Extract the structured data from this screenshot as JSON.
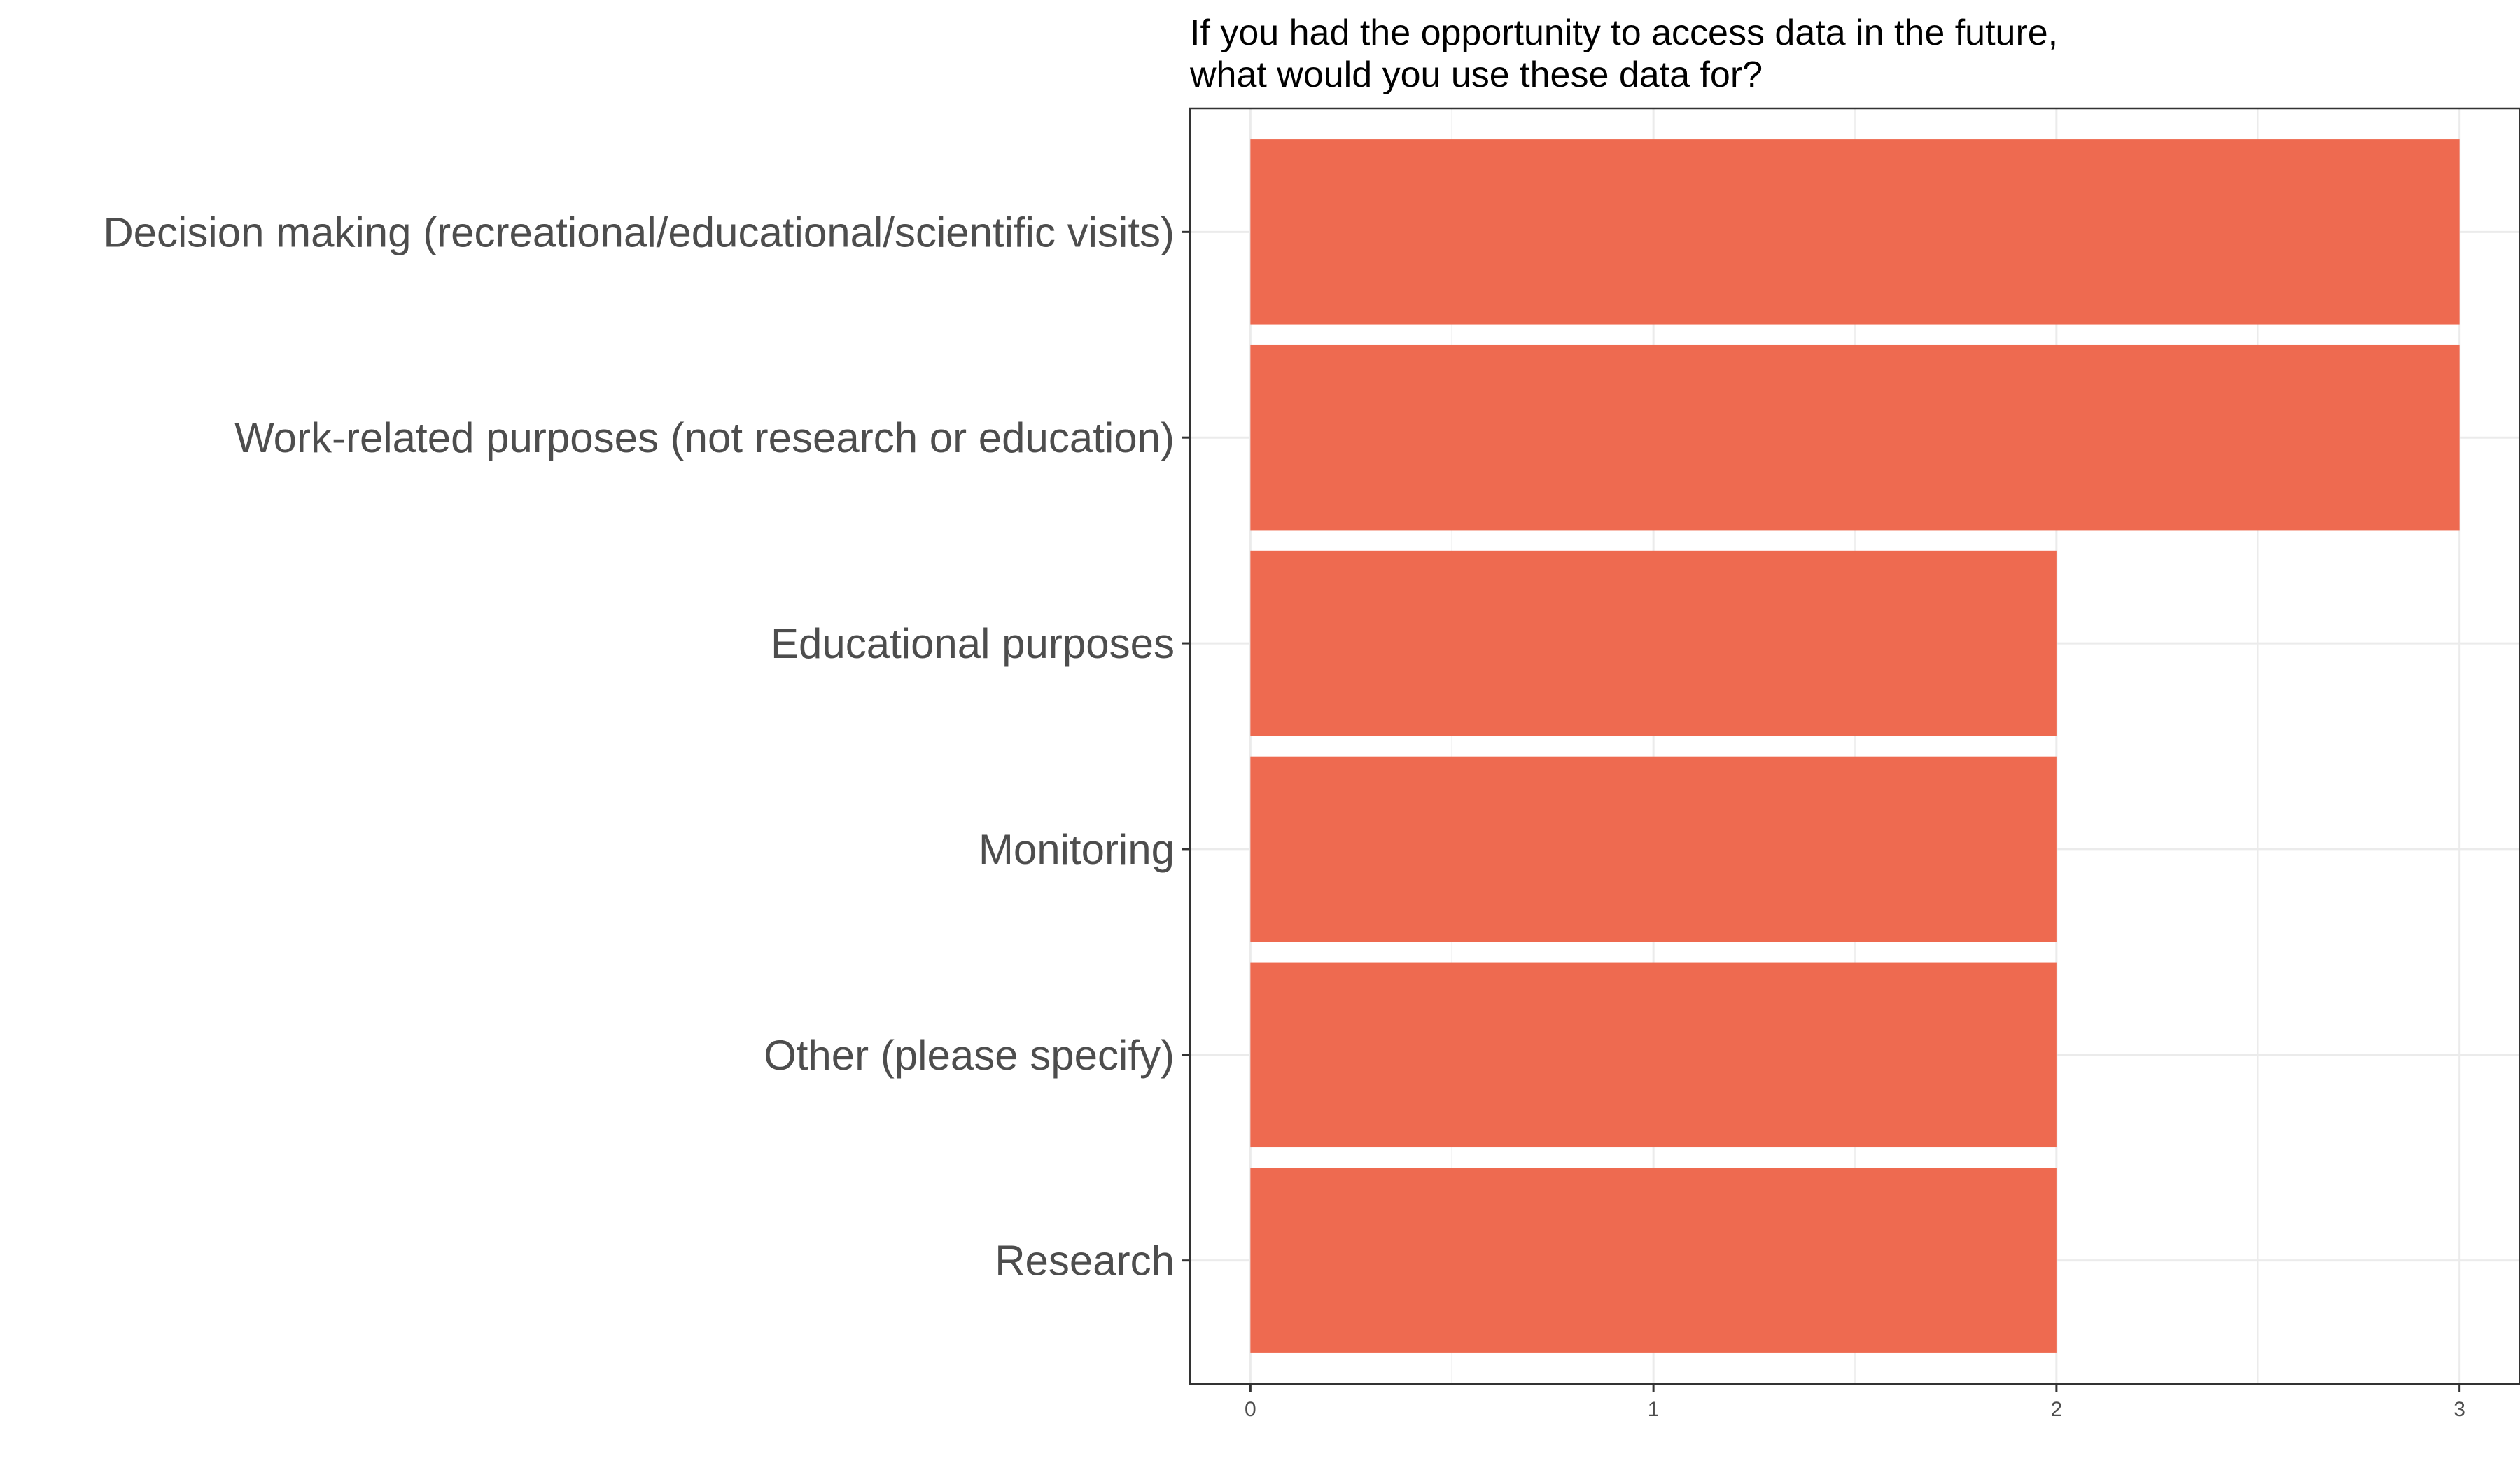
{
  "chart_data": {
    "type": "bar",
    "orientation": "horizontal",
    "title_lines": [
      "If you had the opportunity to access data in the future,",
      "what would you use these data for?"
    ],
    "xlabel": "",
    "ylabel": "",
    "categories": [
      "Decision making (recreational/educational/scientific visits)",
      "Work-related purposes (not research or education)",
      "Educational purposes",
      "Monitoring",
      "Other (please specify)",
      "Research"
    ],
    "values": [
      3,
      3,
      2,
      2,
      2,
      2
    ],
    "xlim": [
      -0.15,
      3.15
    ],
    "x_ticks": [
      0,
      1,
      2,
      3
    ],
    "x_tick_labels": [
      "0",
      "1",
      "2",
      "3"
    ],
    "grid": true,
    "bar_color": "#EE6A50",
    "grid_color": "#EBEBEB",
    "panel_border_color": "#333333"
  }
}
